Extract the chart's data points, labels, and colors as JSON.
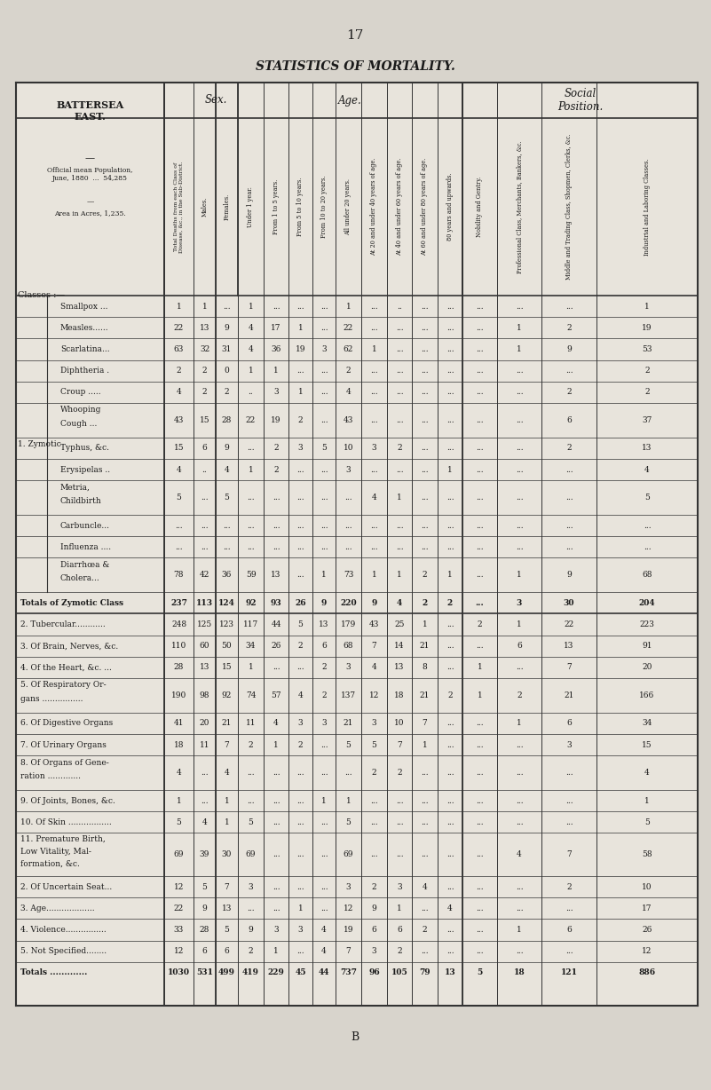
{
  "page_number": "17",
  "title": "STATISTICS OF MORTALITY.",
  "subtitle_left": "BATTERSEA\nEAST.",
  "subtitle_info": "Official mean Population,\nJune, 1880  ...  54,285\n—\nArea in Acres, 1,235.",
  "col0_header": "Total Deaths from each Class of\nDisease, &c., in the Sub-District.",
  "sex_header": "Sex.",
  "age_header": "Age.",
  "social_header": "Social\nPosition.",
  "col_headers": [
    "Males.",
    "Females.",
    "Under 1 year.",
    "From 1 to 5 years.",
    "From 5 to 10 years.",
    "From 10 to 20 years.",
    "All under 20 years.",
    "At 20 and under 40 years of age.",
    "At 40 and under 60 years of age.",
    "At 60 and under 80 years of age.",
    "80 years and upwards.",
    "Nobility and Gentry.",
    "Professional Class, Merchants, Bankers, &c.",
    "Middle and Trading Class, Shopmen, Clerks, &c.",
    "Industrial and Laboring Classes."
  ],
  "class_label": "Classes :—",
  "zymotic_label": "1. Zymotic",
  "rows": [
    {
      "label": "Smallpox ...",
      "indent": 2,
      "values": [
        "1",
        "1",
        "...",
        "1",
        "...",
        "...",
        "...",
        "1",
        "...",
        "..",
        "...",
        "...",
        "...",
        "...",
        "...",
        "1"
      ]
    },
    {
      "label": "Measles......",
      "indent": 2,
      "values": [
        "22",
        "13",
        "9",
        "4",
        "17",
        "1",
        "...",
        "22",
        "...",
        "...",
        "...",
        "...",
        "...",
        "1",
        "2",
        "19"
      ]
    },
    {
      "label": "Scarlatina...",
      "indent": 2,
      "values": [
        "63",
        "32",
        "31",
        "4",
        "36",
        "19",
        "3",
        "62",
        "1",
        "...",
        "...",
        "...",
        "...",
        "1",
        "9",
        "53"
      ]
    },
    {
      "label": "Diphtheria .",
      "indent": 2,
      "values": [
        "2",
        "2",
        "0",
        "1",
        "1",
        "...",
        "...",
        "2",
        "...",
        "...",
        "...",
        "...",
        "...",
        "...",
        "...",
        "2"
      ]
    },
    {
      "label": "Croup .....",
      "indent": 2,
      "values": [
        "4",
        "2",
        "2",
        "..",
        "3",
        "1",
        "...",
        "4",
        "...",
        "...",
        "...",
        "...",
        "...",
        "...",
        "2",
        "2"
      ]
    },
    {
      "label": "Whooping\nCough ...",
      "indent": 2,
      "values": [
        "43",
        "15",
        "28",
        "22",
        "19",
        "2",
        "...",
        "43",
        "...",
        "...",
        "...",
        "...",
        "...",
        "...",
        "6",
        "37"
      ]
    },
    {
      "label": "Typhus, &c.",
      "indent": 2,
      "values": [
        "15",
        "6",
        "9",
        "...",
        "2",
        "3",
        "5",
        "10",
        "3",
        "2",
        "...",
        "...",
        "...",
        "...",
        "2",
        "13"
      ]
    },
    {
      "label": "Erysipelas ..",
      "indent": 2,
      "values": [
        "4",
        "..",
        "4",
        "1",
        "2",
        "...",
        "...",
        "3",
        "...",
        "...",
        "...",
        "1",
        "...",
        "...",
        "...",
        "4"
      ]
    },
    {
      "label": "Metria,\nChildbirth",
      "indent": 2,
      "values": [
        "5",
        "...",
        "5",
        "...",
        "...",
        "...",
        "...",
        "...",
        "4",
        "1",
        "...",
        "...",
        "...",
        "...",
        "...",
        "5"
      ]
    },
    {
      "label": "Carbuncle...",
      "indent": 2,
      "values": [
        "...",
        "...",
        "...",
        "...",
        "...",
        "...",
        "...",
        "...",
        "...",
        "...",
        "...",
        "...",
        "...",
        "...",
        "...",
        "..."
      ]
    },
    {
      "label": "Influenza ....",
      "indent": 2,
      "values": [
        "...",
        "...",
        "...",
        "...",
        "...",
        "...",
        "...",
        "...",
        "...",
        "...",
        "...",
        "...",
        "...",
        "...",
        "...",
        "..."
      ]
    },
    {
      "label": "Diarrhœa &\nCholera...",
      "indent": 2,
      "values": [
        "78",
        "42",
        "36",
        "59",
        "13",
        "...",
        "1",
        "73",
        "1",
        "1",
        "2",
        "1",
        "...",
        "1",
        "9",
        "68"
      ]
    },
    {
      "label": "Totals of Zymotic Class",
      "indent": 0,
      "bold": true,
      "values": [
        "237",
        "113",
        "124",
        "92",
        "93",
        "26",
        "9",
        "220",
        "9",
        "4",
        "2",
        "2",
        "...",
        "3",
        "30",
        "204"
      ]
    },
    {
      "label": "2. Tubercular............",
      "indent": 0,
      "values": [
        "248",
        "125",
        "123",
        "117",
        "44",
        "5",
        "13",
        "179",
        "43",
        "25",
        "1",
        "...",
        "2",
        "1",
        "22",
        "223"
      ]
    },
    {
      "label": "3. Of Brain, Nerves, &c.",
      "indent": 0,
      "values": [
        "110",
        "60",
        "50",
        "34",
        "26",
        "2",
        "6",
        "68",
        "7",
        "14",
        "21",
        "...",
        "...",
        "6",
        "13",
        "91"
      ]
    },
    {
      "label": "4. Of the Heart, &c. ...",
      "indent": 0,
      "values": [
        "28",
        "13",
        "15",
        "1",
        "...",
        "...",
        "2",
        "3",
        "4",
        "13",
        "8",
        "...",
        "1",
        "...",
        "7",
        "20"
      ]
    },
    {
      "label": "5. Of Respiratory Or-\ngans ................",
      "indent": 0,
      "values": [
        "190",
        "98",
        "92",
        "74",
        "57",
        "4",
        "2",
        "137",
        "12",
        "18",
        "21",
        "2",
        "1",
        "2",
        "21",
        "166"
      ]
    },
    {
      "label": "6. Of Digestive Organs",
      "indent": 0,
      "values": [
        "41",
        "20",
        "21",
        "11",
        "4",
        "3",
        "3",
        "21",
        "3",
        "10",
        "7",
        "...",
        "...",
        "1",
        "6",
        "34"
      ]
    },
    {
      "label": "7. Of Urinary Organs",
      "indent": 0,
      "values": [
        "18",
        "11",
        "7",
        "2",
        "1",
        "2",
        "...",
        "5",
        "5",
        "7",
        "1",
        "...",
        "...",
        "...",
        "3",
        "15"
      ]
    },
    {
      "label": "8. Of Organs of Gene-\nration .............",
      "indent": 0,
      "values": [
        "4",
        "...",
        "4",
        "...",
        "...",
        "...",
        "...",
        "...",
        "2",
        "2",
        "...",
        "...",
        "...",
        "...",
        "...",
        "4"
      ]
    },
    {
      "label": "9. Of Joints, Bones, &c.",
      "indent": 0,
      "values": [
        "1",
        "...",
        "1",
        "...",
        "...",
        "...",
        "1",
        "1",
        "...",
        "...",
        "...",
        "...",
        "...",
        "...",
        "...",
        "1"
      ]
    },
    {
      "label": "10. Of Skin .................",
      "indent": 0,
      "values": [
        "5",
        "4",
        "1",
        "5",
        "...",
        "...",
        "...",
        "5",
        "...",
        "...",
        "...",
        "...",
        "...",
        "...",
        "...",
        "5"
      ]
    },
    {
      "label": "11. Premature Birth,\nLow Vitality, Mal-\nformation, &c.",
      "indent": 0,
      "values": [
        "69",
        "39",
        "30",
        "69",
        "...",
        "...",
        "...",
        "69",
        "...",
        "...",
        "...",
        "...",
        "...",
        "4",
        "7",
        "58"
      ]
    },
    {
      "label": "2. Of Uncertain Seat...",
      "indent": 0,
      "values": [
        "12",
        "5",
        "7",
        "3",
        "...",
        "...",
        "...",
        "3",
        "2",
        "3",
        "4",
        "...",
        "...",
        "...",
        "2",
        "10"
      ]
    },
    {
      "label": "3. Age...................",
      "indent": 0,
      "values": [
        "22",
        "9",
        "13",
        "...",
        "...",
        "1",
        "...",
        "12",
        "9",
        "1",
        "...",
        "4",
        "...",
        "...",
        "...",
        "17"
      ]
    },
    {
      "label": "4. Violence................",
      "indent": 0,
      "values": [
        "33",
        "28",
        "5",
        "9",
        "3",
        "3",
        "4",
        "19",
        "6",
        "6",
        "2",
        "...",
        "...",
        "1",
        "6",
        "26"
      ]
    },
    {
      "label": "5. Not Specified........",
      "indent": 0,
      "values": [
        "12",
        "6",
        "6",
        "2",
        "1",
        "...",
        "4",
        "7",
        "3",
        "2",
        "...",
        "...",
        "...",
        "...",
        "...",
        "12"
      ]
    },
    {
      "label": "Totals .............",
      "indent": 0,
      "bold": true,
      "values": [
        "1030",
        "531",
        "499",
        "419",
        "229",
        "45",
        "44",
        "737",
        "96",
        "105",
        "79",
        "13",
        "5",
        "18",
        "121",
        "886"
      ]
    }
  ],
  "bg_color": "#d8d4cc",
  "table_bg": "#e8e4dc",
  "text_color": "#1a1a1a",
  "line_color": "#333333",
  "footer": "B"
}
